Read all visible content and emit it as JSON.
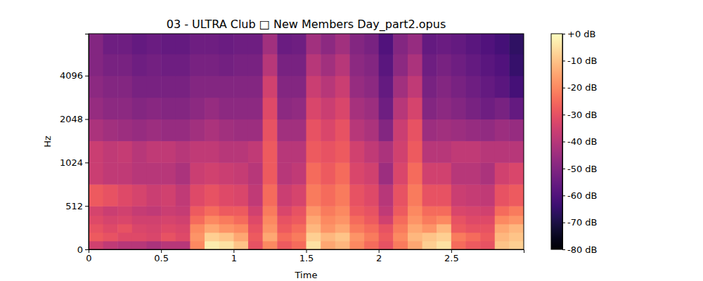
{
  "chart_data": {
    "type": "heatmap",
    "title": "03 - ULTRA Club □ New Members Day_part2.opus",
    "x_label": "Time",
    "y_label": "Hz",
    "xlim": [
      0,
      3
    ],
    "xticks": [
      0,
      0.5,
      1,
      1.5,
      2,
      2.5
    ],
    "ylim": [
      0,
      8000
    ],
    "yticks": [
      0,
      512,
      1024,
      2048,
      4096
    ],
    "log": "y",
    "color": "magma",
    "time_bins": [
      0,
      0.1,
      0.2,
      0.3,
      0.4,
      0.5,
      0.6,
      0.7,
      0.8,
      0.9,
      1,
      1.1,
      1.2,
      1.3,
      1.4,
      1.5,
      1.6,
      1.7,
      1.8,
      1.9,
      2,
      2.1,
      2.2,
      2.3,
      2.4,
      2.5,
      2.6,
      2.7,
      2.8,
      2.9,
      3
    ],
    "freq_bins": [
      0,
      100,
      200,
      300,
      400,
      512,
      724,
      1024,
      1448,
      2048,
      2896,
      4096,
      5793,
      8000
    ],
    "cells": [
      [
        -35,
        -38,
        -40,
        -40,
        -42,
        -40,
        -40,
        -20,
        -3,
        -5,
        -10,
        -30,
        -20,
        -28,
        -25,
        -5,
        -15,
        -12,
        -20,
        -25,
        -30,
        -22,
        -15,
        -8,
        -5,
        -25,
        -28,
        -30,
        -10,
        -8
      ],
      [
        -28,
        -30,
        -32,
        -32,
        -33,
        -30,
        -32,
        -18,
        -8,
        -10,
        -15,
        -28,
        -15,
        -25,
        -22,
        -8,
        -12,
        -10,
        -18,
        -22,
        -28,
        -20,
        -12,
        -10,
        -8,
        -22,
        -25,
        -28,
        -12,
        -10
      ],
      [
        -30,
        -32,
        -30,
        -33,
        -34,
        -32,
        -33,
        -20,
        -15,
        -18,
        -20,
        -30,
        -18,
        -28,
        -25,
        -12,
        -18,
        -15,
        -22,
        -25,
        -30,
        -22,
        -15,
        -18,
        -12,
        -28,
        -30,
        -30,
        -15,
        -12
      ],
      [
        -32,
        -34,
        -33,
        -35,
        -35,
        -34,
        -35,
        -25,
        -20,
        -22,
        -25,
        -32,
        -20,
        -30,
        -28,
        -15,
        -20,
        -18,
        -25,
        -28,
        -35,
        -25,
        -18,
        -22,
        -20,
        -30,
        -32,
        -32,
        -20,
        -18
      ],
      [
        -34,
        -36,
        -35,
        -37,
        -38,
        -36,
        -37,
        -28,
        -25,
        -28,
        -28,
        -35,
        -22,
        -33,
        -30,
        -18,
        -22,
        -20,
        -28,
        -30,
        -38,
        -28,
        -20,
        -25,
        -25,
        -33,
        -34,
        -35,
        -25,
        -22
      ],
      [
        -28,
        -30,
        -32,
        -34,
        -36,
        -35,
        -38,
        -32,
        -30,
        -32,
        -33,
        -38,
        -25,
        -36,
        -34,
        -22,
        -25,
        -22,
        -30,
        -32,
        -40,
        -30,
        -22,
        -30,
        -30,
        -36,
        -37,
        -38,
        -30,
        -28
      ],
      [
        -36,
        -38,
        -38,
        -40,
        -40,
        -40,
        -42,
        -36,
        -35,
        -36,
        -37,
        -40,
        -28,
        -40,
        -38,
        -25,
        -28,
        -25,
        -33,
        -35,
        -45,
        -33,
        -25,
        -35,
        -35,
        -40,
        -40,
        -42,
        -35,
        -33
      ],
      [
        -36,
        -38,
        -37,
        -40,
        -38,
        -38,
        -40,
        -38,
        -38,
        -40,
        -40,
        -38,
        -28,
        -40,
        -40,
        -28,
        -30,
        -28,
        -35,
        -38,
        -42,
        -35,
        -28,
        -40,
        -40,
        -38,
        -38,
        -40,
        -40,
        -40
      ],
      [
        -42,
        -44,
        -45,
        -46,
        -45,
        -46,
        -46,
        -44,
        -42,
        -44,
        -45,
        -45,
        -30,
        -44,
        -44,
        -30,
        -33,
        -30,
        -40,
        -42,
        -50,
        -36,
        -30,
        -45,
        -44,
        -45,
        -46,
        -47,
        -45,
        -46
      ],
      [
        -46,
        -48,
        -48,
        -50,
        -49,
        -50,
        -50,
        -48,
        -46,
        -48,
        -48,
        -48,
        -32,
        -48,
        -47,
        -33,
        -36,
        -33,
        -43,
        -45,
        -54,
        -40,
        -34,
        -50,
        -48,
        -50,
        -52,
        -54,
        -52,
        -56
      ],
      [
        -48,
        -50,
        -50,
        -52,
        -52,
        -52,
        -52,
        -50,
        -50,
        -50,
        -50,
        -50,
        -35,
        -50,
        -50,
        -36,
        -40,
        -36,
        -46,
        -48,
        -56,
        -44,
        -38,
        -52,
        -50,
        -52,
        -54,
        -56,
        -58,
        -62
      ],
      [
        -50,
        -52,
        -52,
        -54,
        -53,
        -54,
        -54,
        -52,
        -52,
        -53,
        -52,
        -52,
        -40,
        -52,
        -52,
        -40,
        -44,
        -40,
        -48,
        -50,
        -58,
        -48,
        -42,
        -54,
        -52,
        -54,
        -56,
        -58,
        -60,
        -65
      ],
      [
        -50,
        -54,
        -54,
        -56,
        -55,
        -56,
        -56,
        -54,
        -54,
        -55,
        -54,
        -54,
        -44,
        -55,
        -54,
        -44,
        -48,
        -44,
        -50,
        -52,
        -60,
        -50,
        -46,
        -56,
        -55,
        -56,
        -58,
        -60,
        -62,
        -66
      ]
    ],
    "colorbar": {
      "range": [
        -80,
        0
      ],
      "ticks": [
        {
          "value": 0,
          "label": "+0 dB"
        },
        {
          "value": -10,
          "label": "-10 dB"
        },
        {
          "value": -20,
          "label": "-20 dB"
        },
        {
          "value": -30,
          "label": "-30 dB"
        },
        {
          "value": -40,
          "label": "-40 dB"
        },
        {
          "value": -50,
          "label": "-50 dB"
        },
        {
          "value": -60,
          "label": "-60 dB"
        },
        {
          "value": -70,
          "label": "-70 dB"
        },
        {
          "value": -80,
          "label": "-80 dB"
        }
      ]
    }
  }
}
